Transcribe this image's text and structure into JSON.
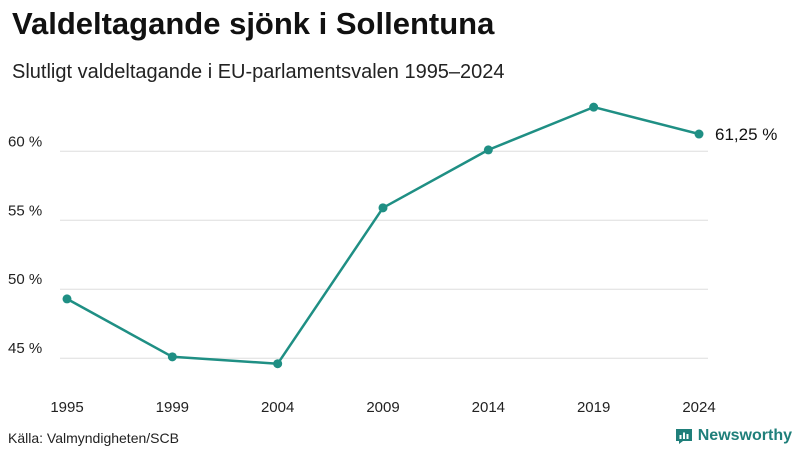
{
  "header": {
    "title": "Valdeltagande sjönk i Sollentuna",
    "subtitle": "Slutligt valdeltagande i EU-parlamentsvalen 1995–2024"
  },
  "footer": {
    "source": "Källa: Valmyndigheten/SCB",
    "brand": "Newsworthy"
  },
  "colors": {
    "line": "#1f8f84",
    "grid": "#dddddd",
    "brand": "#1f7f7a"
  },
  "chart_data": {
    "type": "line",
    "title": "Valdeltagande sjönk i Sollentuna",
    "subtitle": "Slutligt valdeltagande i EU-parlamentsvalen 1995–2024",
    "xlabel": "",
    "ylabel": "",
    "x": [
      "1995",
      "1999",
      "2004",
      "2009",
      "2014",
      "2019",
      "2024"
    ],
    "series": [
      {
        "name": "Valdeltagande",
        "values": [
          49.3,
          45.1,
          44.6,
          55.9,
          60.1,
          63.2,
          61.25
        ]
      }
    ],
    "yticks": [
      45,
      50,
      55,
      60
    ],
    "ytick_labels": [
      "45 %",
      "50 %",
      "55 %",
      "60 %"
    ],
    "ylim": [
      44,
      63.5
    ],
    "end_label": "61,25 %",
    "grid": true
  }
}
